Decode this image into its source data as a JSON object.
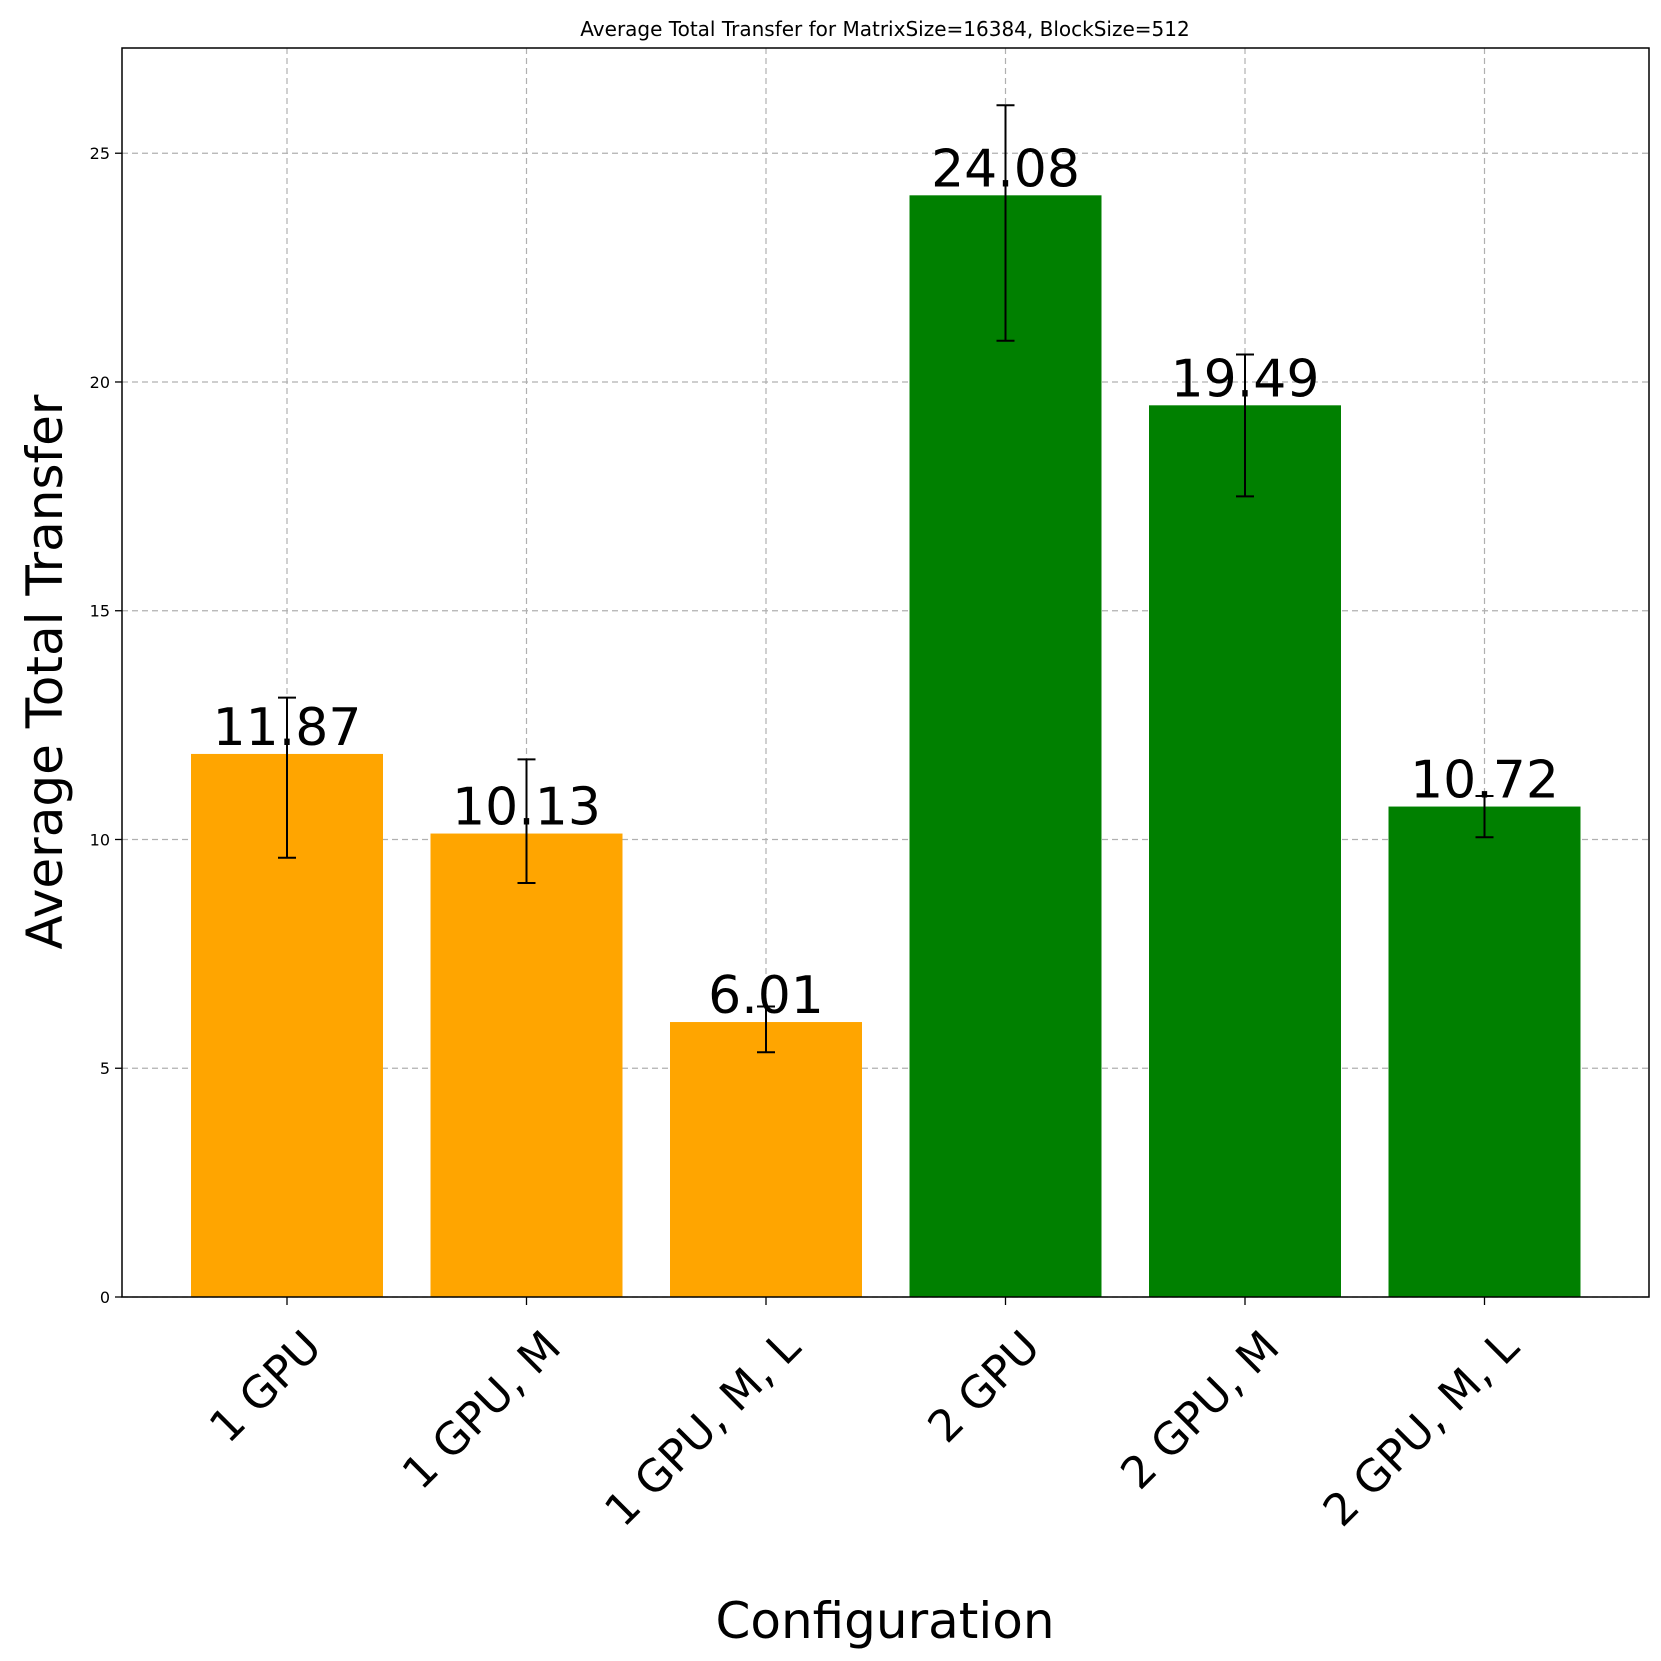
{
  "chart_data": {
    "type": "bar",
    "title": "Average Total Transfer for MatrixSize=16384, BlockSize=512",
    "xlabel": "Configuration",
    "ylabel": "Average Total Transfer",
    "categories": [
      "1 GPU",
      "1 GPU, M",
      "1 GPU, M, L",
      "2 GPU",
      "2 GPU, M",
      "2 GPU, M, L"
    ],
    "values": [
      11.87,
      10.13,
      6.01,
      24.08,
      19.49,
      10.72
    ],
    "value_labels": [
      "11.87",
      "10.13",
      "6.01",
      "24.08",
      "19.49",
      "10.72"
    ],
    "error_low": [
      9.6,
      9.05,
      5.35,
      20.9,
      17.5,
      10.05
    ],
    "error_high": [
      13.1,
      11.75,
      6.35,
      26.05,
      20.6,
      10.95
    ],
    "bar_colors": [
      "#ffa500",
      "#ffa500",
      "#ffa500",
      "#008000",
      "#008000",
      "#008000"
    ],
    "ylim": [
      0,
      27.3
    ],
    "yticks": [
      0,
      5,
      10,
      15,
      20,
      25
    ],
    "ytick_labels": [
      "0",
      "5",
      "10",
      "15",
      "20",
      "25"
    ],
    "grid": true
  }
}
